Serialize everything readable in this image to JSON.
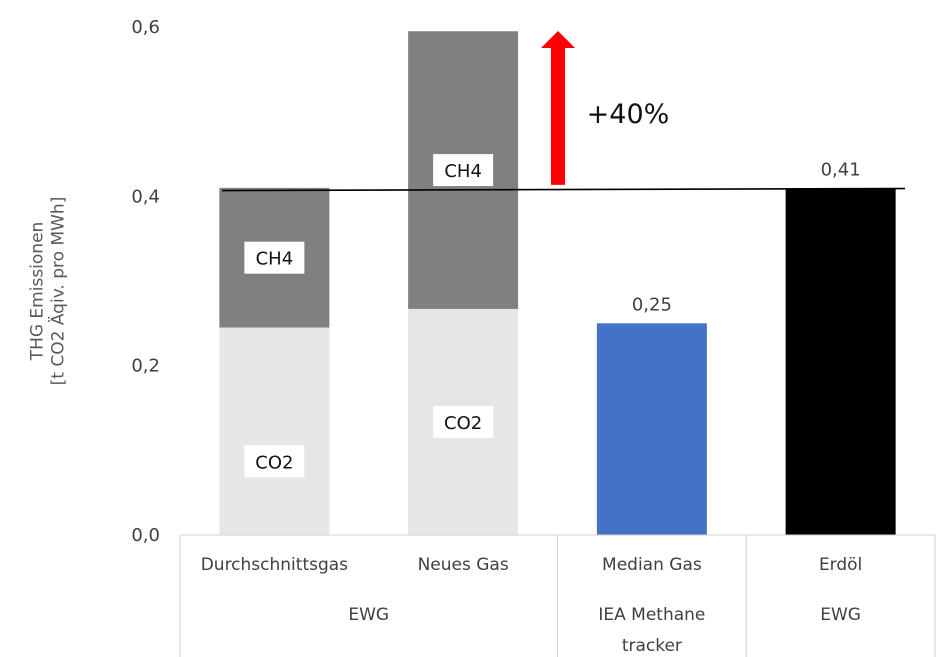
{
  "chart_data": {
    "type": "bar",
    "stacked": true,
    "ylabel": [
      "THG Emissionen",
      "[t CO2 Äqiv. pro MWh]"
    ],
    "ylim": [
      0,
      0.6
    ],
    "yticks": [
      "0,0",
      "0,2",
      "0,4",
      "0,6"
    ],
    "grid": false,
    "bars": [
      {
        "category": "Durchschnittsgas",
        "group": "EWG",
        "segments": [
          {
            "label": "CO2",
            "value": 0.245,
            "color": "#e6e6e6"
          },
          {
            "label": "CH4",
            "value": 0.165,
            "color": "#808080"
          }
        ]
      },
      {
        "category": "Neues Gas",
        "group": "EWG",
        "segments": [
          {
            "label": "CO2",
            "value": 0.267,
            "color": "#e6e6e6"
          },
          {
            "label": "CH4",
            "value": 0.328,
            "color": "#808080"
          }
        ]
      },
      {
        "category": "Median  Gas",
        "group": "IEA Methane tracker",
        "data_label": "0,25",
        "segments": [
          {
            "label": "",
            "value": 0.25,
            "color": "#4472c4"
          }
        ]
      },
      {
        "category": "Erdöl",
        "group": "EWG",
        "data_label": "0,41",
        "segments": [
          {
            "label": "",
            "value": 0.409,
            "color": "#000000"
          }
        ]
      }
    ],
    "groups": [
      {
        "label": "EWG",
        "span": [
          0,
          1
        ]
      },
      {
        "label": [
          "IEA Methane",
          "tracker"
        ],
        "span": [
          2,
          2
        ]
      },
      {
        "label": "EWG",
        "span": [
          3,
          3
        ]
      }
    ],
    "reference_line": {
      "value": 0.408,
      "color": "#000000"
    },
    "annotation": {
      "text": "+40%",
      "arrow_from": 0.41,
      "arrow_to": 0.6,
      "arrow_color": "#ff0000"
    }
  }
}
